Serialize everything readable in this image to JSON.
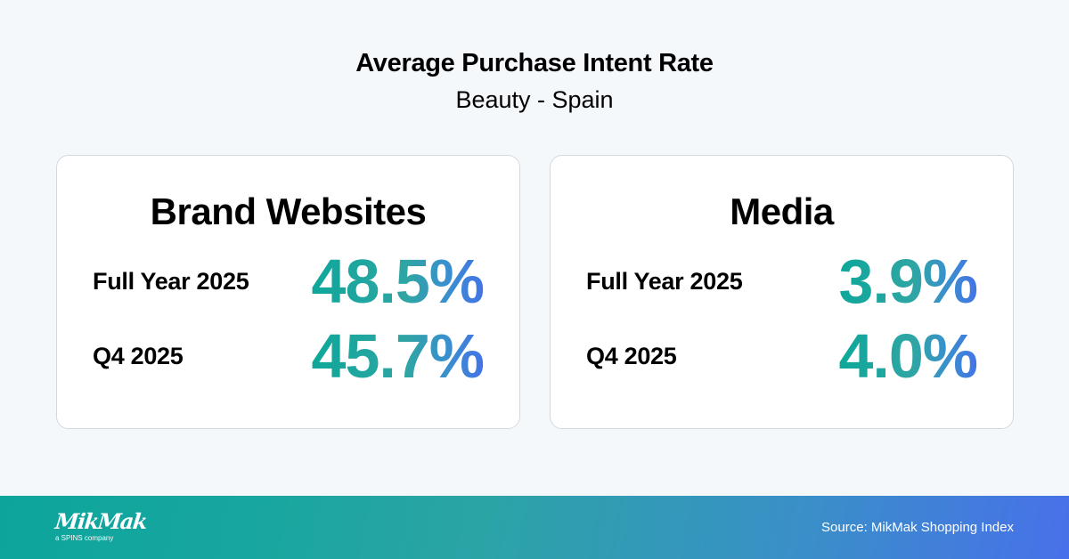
{
  "header": {
    "title": "Average Purchase Intent Rate",
    "subtitle": "Beauty - Spain"
  },
  "cards": [
    {
      "title": "Brand Websites",
      "rows": [
        {
          "label": "Full Year 2025",
          "value": "48.5%"
        },
        {
          "label": "Q4 2025",
          "value": "45.7%"
        }
      ]
    },
    {
      "title": "Media",
      "rows": [
        {
          "label": "Full Year 2025",
          "value": "3.9%"
        },
        {
          "label": "Q4 2025",
          "value": "4.0%"
        }
      ]
    }
  ],
  "footer": {
    "logo_text": "MikMak",
    "logo_tagline": "a SPINS company",
    "source": "Source: MikMak Shopping Index"
  },
  "colors": {
    "background": "#f5f8fb",
    "card_border": "#d4d8de",
    "gradient_start": "#0ea79a",
    "gradient_end": "#4373e6"
  }
}
